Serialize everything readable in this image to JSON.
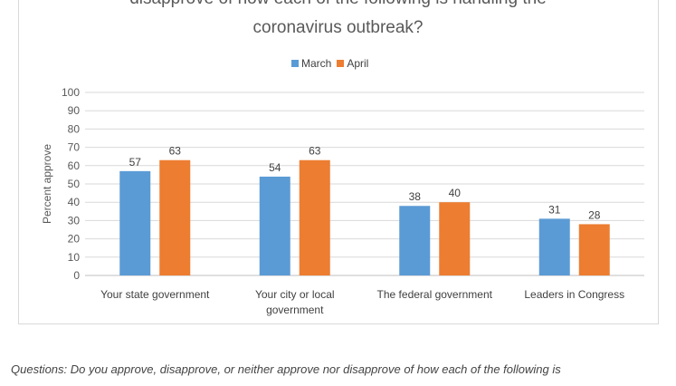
{
  "chart_data": {
    "type": "bar",
    "title_lines": [
      "disapprove of how each of the following is handling the",
      "coronavirus outbreak?"
    ],
    "categories": [
      [
        "Your state government"
      ],
      [
        "Your city or local",
        "government"
      ],
      [
        "The federal government"
      ],
      [
        "Leaders in Congress"
      ]
    ],
    "series": [
      {
        "name": "March",
        "values": [
          57,
          54,
          38,
          31
        ],
        "color": "#5b9bd5"
      },
      {
        "name": "April",
        "values": [
          63,
          63,
          40,
          28
        ],
        "color": "#ed7d31"
      }
    ],
    "ylabel": "Percent approve",
    "ylim": [
      0,
      100
    ],
    "yticks": [
      0,
      10,
      20,
      30,
      40,
      50,
      60,
      70,
      80,
      90,
      100
    ],
    "grid": true,
    "legend_position": "top"
  },
  "caption": "Questions: Do you approve, disapprove, or neither approve nor disapprove of how each of the following is"
}
